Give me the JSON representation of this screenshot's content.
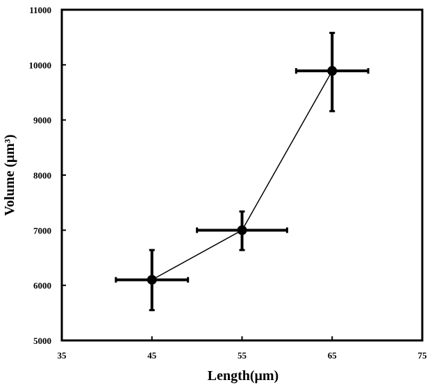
{
  "chart_data": {
    "type": "scatter",
    "xlabel": "Length(μm)",
    "ylabel": "Volume (μm³)",
    "xlim": [
      35,
      75
    ],
    "ylim": [
      5000,
      11000
    ],
    "x_ticks": [
      35,
      45,
      55,
      65,
      75
    ],
    "y_ticks": [
      5000,
      6000,
      7000,
      8000,
      9000,
      10000,
      11000
    ],
    "grid": false,
    "series": [
      {
        "points": [
          {
            "x": 45,
            "y": 6100,
            "x_err": 4,
            "y_err_low": 550,
            "y_err_high": 540
          },
          {
            "x": 55,
            "y": 7000,
            "x_err": 5,
            "y_err_low": 360,
            "y_err_high": 340
          },
          {
            "x": 65,
            "y": 9890,
            "x_err": 4,
            "y_err_low": 730,
            "y_err_high": 690
          }
        ]
      }
    ]
  }
}
